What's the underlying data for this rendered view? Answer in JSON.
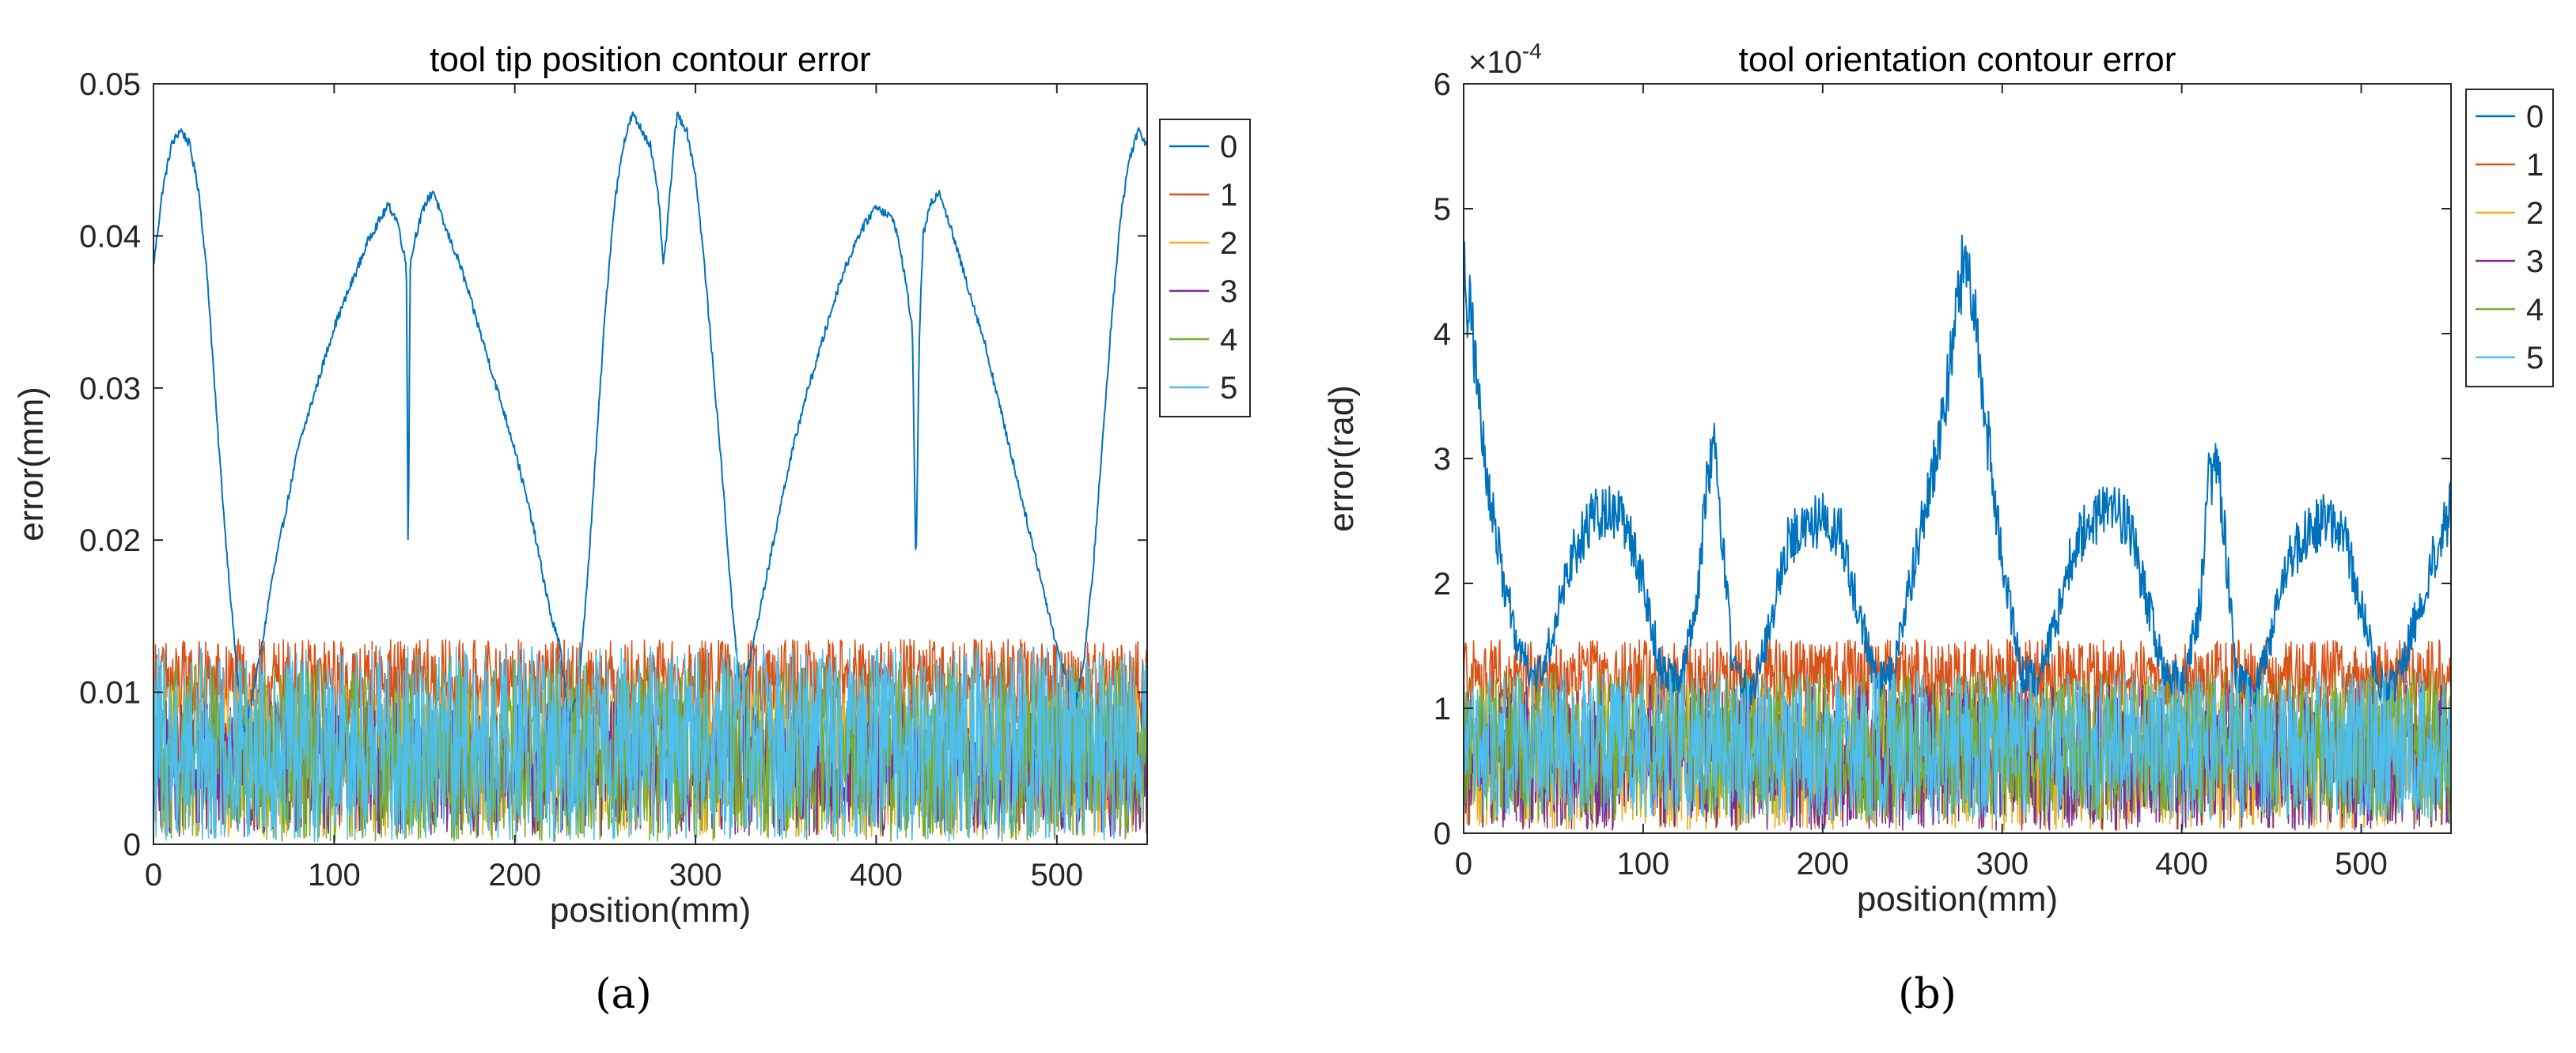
{
  "chart_data": [
    {
      "type": "line",
      "panel_label": "(a)",
      "title": "tool tip position contour error",
      "xlabel": "position(mm)",
      "ylabel": "error(mm)",
      "xlim": [
        0,
        550
      ],
      "ylim": [
        0,
        0.05
      ],
      "xticks": [
        0,
        100,
        200,
        300,
        400,
        500
      ],
      "yticks": [
        0,
        0.01,
        0.02,
        0.03,
        0.04,
        0.05
      ],
      "ytick_labels": [
        "0",
        "0.01",
        "0.02",
        "0.03",
        "0.04",
        "0.05"
      ],
      "exponent_label": "",
      "legend": [
        "0",
        "1",
        "2",
        "3",
        "4",
        "5"
      ],
      "series_colors": [
        "#0072BD",
        "#D95319",
        "#EDB120",
        "#7E2F8E",
        "#77AC30",
        "#4DBEEE"
      ],
      "series": [
        {
          "name": "0",
          "x": [
            0,
            5,
            10,
            15,
            20,
            25,
            30,
            35,
            40,
            45,
            50,
            55,
            60,
            65,
            70,
            75,
            80,
            90,
            100,
            110,
            120,
            130,
            135,
            140,
            141,
            142,
            145,
            150,
            155,
            160,
            170,
            180,
            190,
            200,
            210,
            215,
            220,
            225,
            230,
            235,
            240,
            245,
            250,
            255,
            260,
            265,
            270,
            275,
            280,
            282,
            284,
            286,
            288,
            290,
            295,
            300,
            305,
            310,
            315,
            320,
            325,
            330,
            335,
            340,
            345,
            350,
            360,
            370,
            380,
            390,
            400,
            410,
            415,
            420,
            422,
            424,
            426,
            430,
            435,
            440,
            450,
            460,
            470,
            480,
            490,
            500,
            505,
            510,
            515,
            520,
            525,
            530,
            535,
            540,
            545,
            550
          ],
          "y": [
            0.038,
            0.043,
            0.046,
            0.047,
            0.046,
            0.043,
            0.037,
            0.028,
            0.02,
            0.013,
            0.007,
            0.01,
            0.013,
            0.017,
            0.02,
            0.023,
            0.026,
            0.03,
            0.034,
            0.037,
            0.04,
            0.042,
            0.041,
            0.038,
            0.018,
            0.038,
            0.04,
            0.042,
            0.043,
            0.041,
            0.038,
            0.034,
            0.03,
            0.026,
            0.021,
            0.018,
            0.015,
            0.013,
            0.008,
            0.01,
            0.017,
            0.026,
            0.035,
            0.042,
            0.046,
            0.048,
            0.047,
            0.046,
            0.042,
            0.038,
            0.04,
            0.043,
            0.046,
            0.048,
            0.047,
            0.044,
            0.038,
            0.031,
            0.024,
            0.016,
            0.01,
            0.012,
            0.015,
            0.018,
            0.021,
            0.024,
            0.029,
            0.033,
            0.037,
            0.04,
            0.042,
            0.041,
            0.038,
            0.034,
            0.018,
            0.034,
            0.04,
            0.042,
            0.043,
            0.041,
            0.037,
            0.033,
            0.028,
            0.023,
            0.018,
            0.013,
            0.011,
            0.009,
            0.012,
            0.018,
            0.026,
            0.034,
            0.041,
            0.045,
            0.047,
            0.046
          ]
        },
        {
          "name": "1",
          "base": 0.0105,
          "amp": 0.003
        },
        {
          "name": "2",
          "base": 0.0055,
          "amp": 0.005
        },
        {
          "name": "3",
          "base": 0.005,
          "amp": 0.0045
        },
        {
          "name": "4",
          "base": 0.006,
          "amp": 0.006
        },
        {
          "name": "5",
          "base": 0.0065,
          "amp": 0.0065
        }
      ]
    },
    {
      "type": "line",
      "panel_label": "(b)",
      "title": "tool orientation contour error",
      "xlabel": "position(mm)",
      "ylabel": "error(rad)",
      "xlim": [
        0,
        550
      ],
      "ylim": [
        0,
        0.0006
      ],
      "xticks": [
        0,
        100,
        200,
        300,
        400,
        500
      ],
      "yticks": [
        0,
        0.0001,
        0.0002,
        0.0003,
        0.0004,
        0.0005,
        0.0006
      ],
      "ytick_labels": [
        "0",
        "1",
        "2",
        "3",
        "4",
        "5",
        "6"
      ],
      "exponent_label": "×10",
      "exponent_power": "-4",
      "legend": [
        "0",
        "1",
        "2",
        "3",
        "4",
        "5"
      ],
      "series_colors": [
        "#0072BD",
        "#D95319",
        "#EDB120",
        "#7E2F8E",
        "#77AC30",
        "#4DBEEE"
      ],
      "series": [
        {
          "name": "0",
          "x": [
            0,
            5,
            10,
            20,
            30,
            40,
            50,
            60,
            70,
            80,
            90,
            100,
            110,
            120,
            130,
            135,
            140,
            145,
            150,
            160,
            170,
            180,
            190,
            200,
            210,
            220,
            230,
            240,
            250,
            260,
            270,
            275,
            280,
            285,
            290,
            300,
            310,
            320,
            330,
            340,
            350,
            360,
            370,
            380,
            390,
            400,
            410,
            415,
            420,
            425,
            430,
            440,
            450,
            460,
            470,
            480,
            490,
            500,
            510,
            520,
            530,
            540,
            550
          ],
          "y": [
            0.00045,
            0.0004,
            0.00032,
            0.00022,
            0.00015,
            0.00012,
            0.00016,
            0.00022,
            0.00025,
            0.00026,
            0.00025,
            0.0002,
            0.00013,
            0.00012,
            0.00018,
            0.00028,
            0.00031,
            0.00022,
            0.00013,
            0.00011,
            0.00016,
            0.00023,
            0.00025,
            0.00025,
            0.00024,
            0.00018,
            0.00012,
            0.00013,
            0.00021,
            0.00028,
            0.00036,
            0.00043,
            0.00047,
            0.00042,
            0.00034,
            0.00022,
            0.00013,
            0.00012,
            0.00017,
            0.00023,
            0.00025,
            0.00026,
            0.00025,
            0.00019,
            0.00013,
            0.00012,
            0.00018,
            0.00028,
            0.0003,
            0.00022,
            0.00013,
            0.00011,
            0.00016,
            0.00022,
            0.00024,
            0.00025,
            0.00024,
            0.00018,
            0.00012,
            0.00012,
            0.00017,
            0.00022,
            0.00026
          ]
        },
        {
          "name": "1",
          "base": 0.000125,
          "amp": 3e-05
        },
        {
          "name": "2",
          "base": 6e-05,
          "amp": 6e-05
        },
        {
          "name": "3",
          "base": 6e-05,
          "amp": 6e-05
        },
        {
          "name": "4",
          "base": 7e-05,
          "amp": 6e-05
        },
        {
          "name": "5",
          "base": 7e-05,
          "amp": 6e-05
        }
      ]
    }
  ]
}
